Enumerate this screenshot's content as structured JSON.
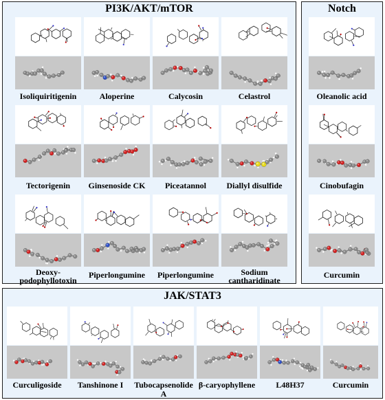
{
  "panels": {
    "pi3k": {
      "title": "PI3K/AKT/mTOR",
      "compounds": [
        "Isoliquiritigenin",
        "Aloperine",
        "Calycosin",
        "Celastrol",
        "Tectorigenin",
        "Ginsenoside CK",
        "Piceatannol",
        "Diallyl disulfide",
        "Deoxy-podophyllotoxin",
        "Piperlongumine",
        "Piperlongumine",
        "Sodium cantharidinate"
      ]
    },
    "notch": {
      "title": "Notch",
      "compounds": [
        "Oleanolic acid",
        "Cinobufagin",
        "Curcumin"
      ]
    },
    "jak": {
      "title": "JAK/STAT3",
      "compounds": [
        "Curculigoside",
        "Tanshinone I",
        "Tubocapsenolide A",
        "β-caryophyllene",
        "L48H37",
        "Curcumin"
      ]
    }
  },
  "labels": {
    "deoxy_line1": "Deoxy-",
    "deoxy_line2": "podophyllotoxin",
    "sodium_line1": "Sodium",
    "sodium_line2": "cantharidinate"
  },
  "colors": {
    "panel_bg": "#eaf3fc",
    "model_bg": "#c8c8c8",
    "carbon": "#8a8a8a",
    "oxygen": "#d42020",
    "nitrogen": "#2d4fc8",
    "sulfur": "#e8dc1c",
    "hydrogen": "#ffffff"
  }
}
